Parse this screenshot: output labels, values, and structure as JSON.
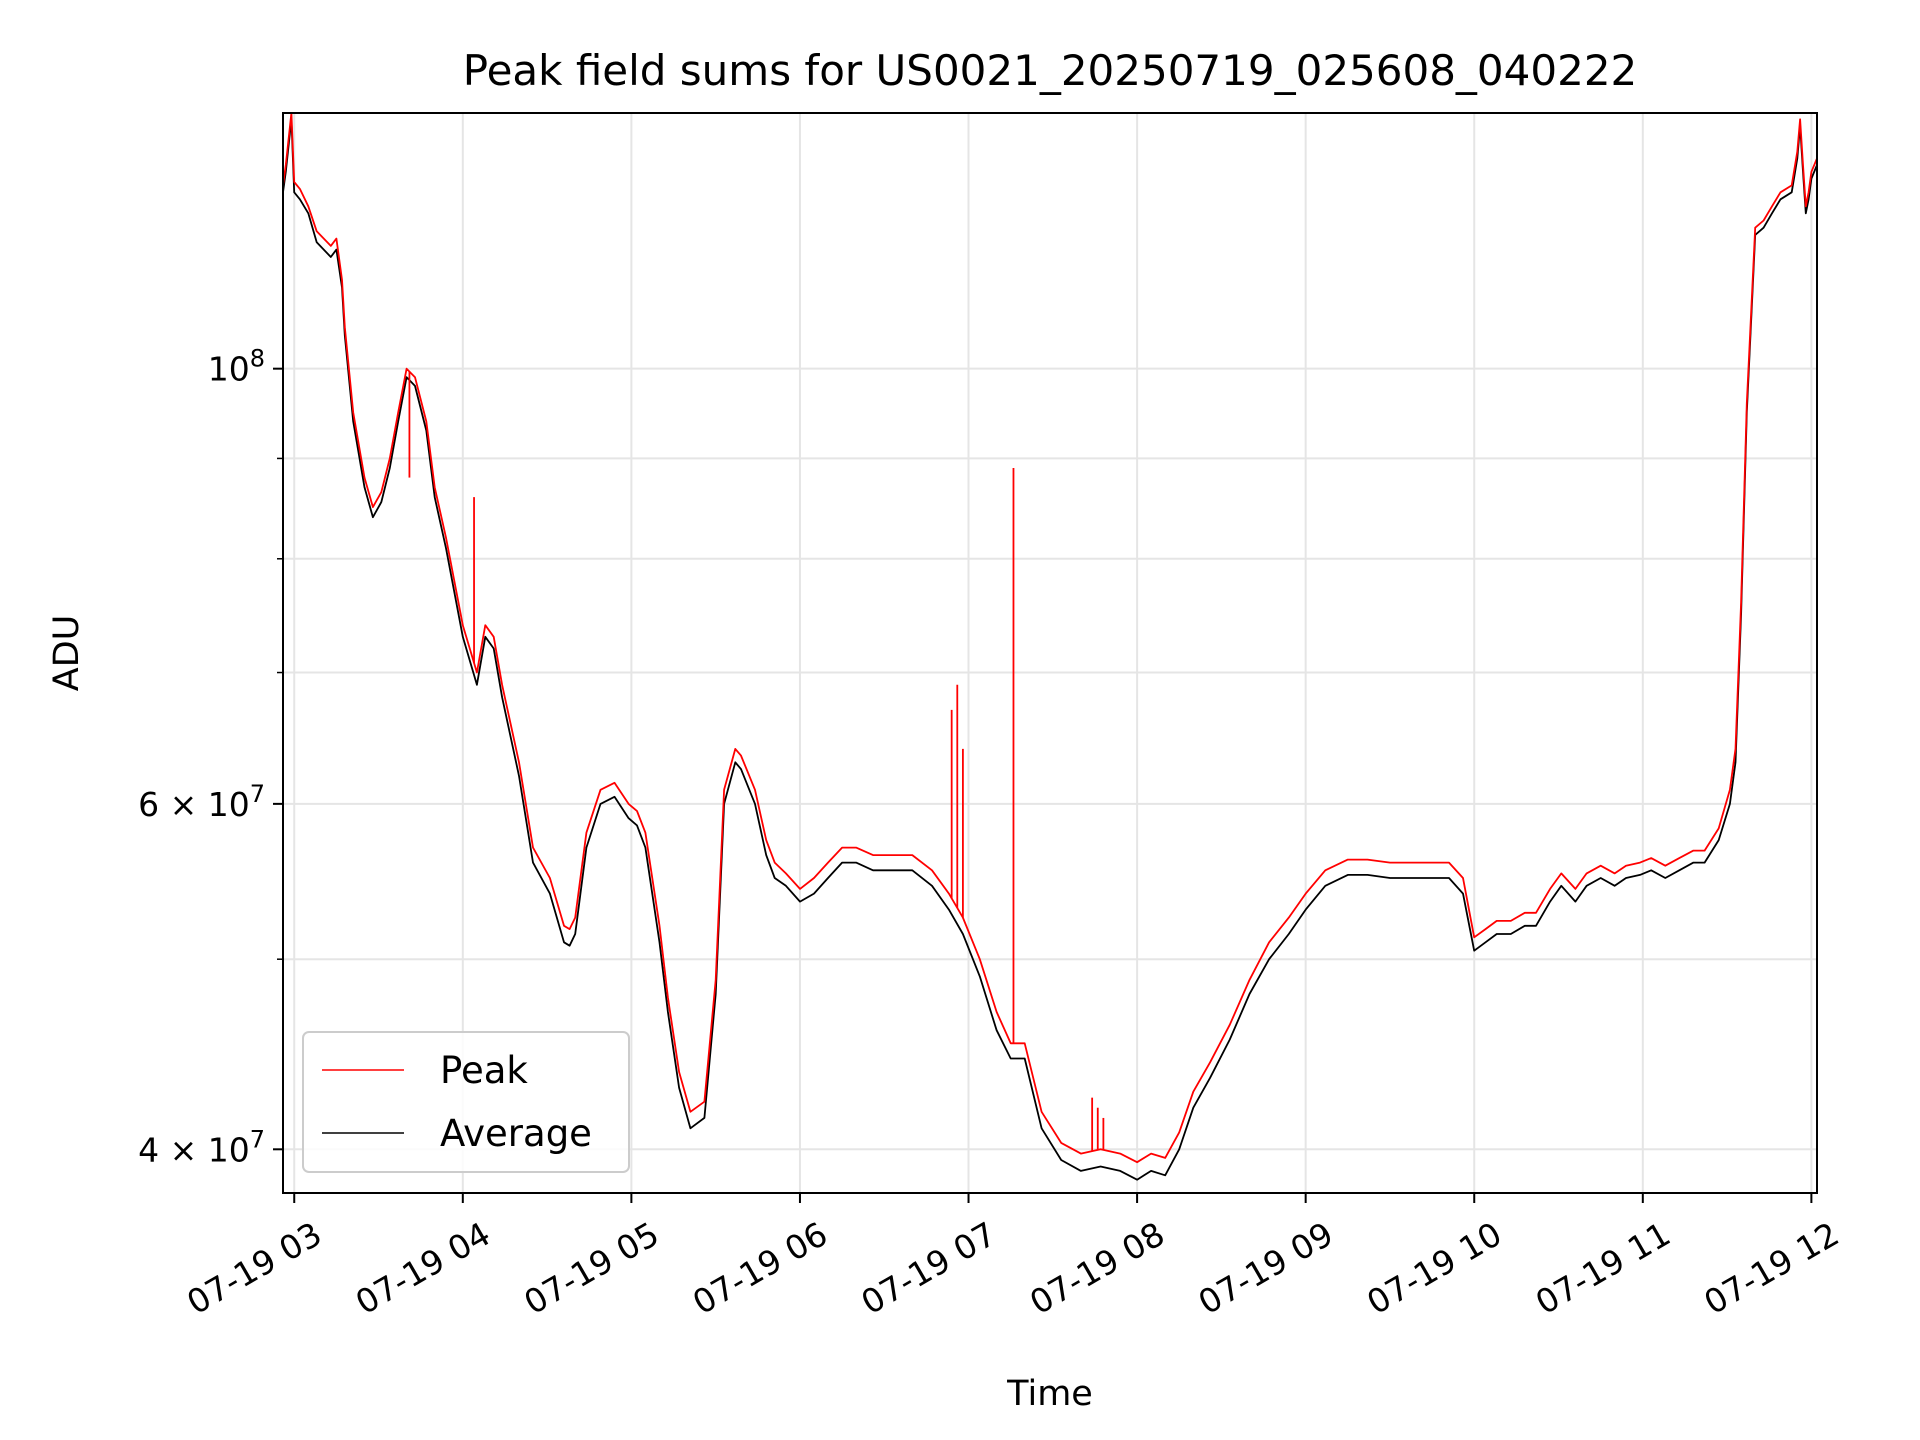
{
  "chart_data": {
    "type": "line",
    "title": "Peak field sums for US0021_20250719_025608_040222",
    "xlabel": "Time",
    "ylabel": "ADU",
    "y_scale": "log",
    "ylim": [
      38000000,
      135000000
    ],
    "xlim": [
      "2025-07-19 02:56",
      "2025-07-19 12:02"
    ],
    "grid": true,
    "legend_position": "lower-left",
    "x_ticks": [
      {
        "label": "07-19 03",
        "value": "2025-07-19 03:00"
      },
      {
        "label": "07-19 04",
        "value": "2025-07-19 04:00"
      },
      {
        "label": "07-19 05",
        "value": "2025-07-19 05:00"
      },
      {
        "label": "07-19 06",
        "value": "2025-07-19 06:00"
      },
      {
        "label": "07-19 07",
        "value": "2025-07-19 07:00"
      },
      {
        "label": "07-19 08",
        "value": "2025-07-19 08:00"
      },
      {
        "label": "07-19 09",
        "value": "2025-07-19 09:00"
      },
      {
        "label": "07-19 10",
        "value": "2025-07-19 10:00"
      },
      {
        "label": "07-19 11",
        "value": "2025-07-19 11:00"
      },
      {
        "label": "07-19 12",
        "value": "2025-07-19 12:00"
      }
    ],
    "y_major_ticks": [
      {
        "label_base": "10",
        "label_exp": "8",
        "value": 100000000
      },
      {
        "label_base": "6 × 10",
        "label_exp": "7",
        "value": 60000000
      },
      {
        "label_base": "4 × 10",
        "label_exp": "7",
        "value": 40000000
      }
    ],
    "y_minor_ticks": [
      50000000,
      70000000,
      80000000,
      90000000
    ],
    "x": [
      "2025-07-19 02:56",
      "2025-07-19 02:57",
      "2025-07-19 02:59",
      "2025-07-19 03:00",
      "2025-07-19 03:02",
      "2025-07-19 03:05",
      "2025-07-19 03:08",
      "2025-07-19 03:13",
      "2025-07-19 03:15",
      "2025-07-19 03:17",
      "2025-07-19 03:18",
      "2025-07-19 03:21",
      "2025-07-19 03:25",
      "2025-07-19 03:28",
      "2025-07-19 03:31",
      "2025-07-19 03:34",
      "2025-07-19 03:37",
      "2025-07-19 03:40",
      "2025-07-19 03:43",
      "2025-07-19 03:47",
      "2025-07-19 03:50",
      "2025-07-19 03:54",
      "2025-07-19 04:00",
      "2025-07-19 04:05",
      "2025-07-19 04:08",
      "2025-07-19 04:11",
      "2025-07-19 04:14",
      "2025-07-19 04:20",
      "2025-07-19 04:25",
      "2025-07-19 04:31",
      "2025-07-19 04:36",
      "2025-07-19 04:38",
      "2025-07-19 04:40",
      "2025-07-19 04:44",
      "2025-07-19 04:49",
      "2025-07-19 04:54",
      "2025-07-19 04:59",
      "2025-07-19 05:02",
      "2025-07-19 05:05",
      "2025-07-19 05:10",
      "2025-07-19 05:13",
      "2025-07-19 05:17",
      "2025-07-19 05:21",
      "2025-07-19 05:26",
      "2025-07-19 05:30",
      "2025-07-19 05:33",
      "2025-07-19 05:37",
      "2025-07-19 05:39",
      "2025-07-19 05:44",
      "2025-07-19 05:48",
      "2025-07-19 05:51",
      "2025-07-19 05:55",
      "2025-07-19 06:00",
      "2025-07-19 06:05",
      "2025-07-19 06:10",
      "2025-07-19 06:15",
      "2025-07-19 06:20",
      "2025-07-19 06:26",
      "2025-07-19 06:33",
      "2025-07-19 06:40",
      "2025-07-19 06:47",
      "2025-07-19 06:53",
      "2025-07-19 06:58",
      "2025-07-19 07:04",
      "2025-07-19 07:10",
      "2025-07-19 07:15",
      "2025-07-19 07:20",
      "2025-07-19 07:26",
      "2025-07-19 07:33",
      "2025-07-19 07:40",
      "2025-07-19 07:47",
      "2025-07-19 07:54",
      "2025-07-19 08:00",
      "2025-07-19 08:05",
      "2025-07-19 08:10",
      "2025-07-19 08:15",
      "2025-07-19 08:20",
      "2025-07-19 08:26",
      "2025-07-19 08:33",
      "2025-07-19 08:40",
      "2025-07-19 08:47",
      "2025-07-19 08:54",
      "2025-07-19 09:00",
      "2025-07-19 09:07",
      "2025-07-19 09:15",
      "2025-07-19 09:22",
      "2025-07-19 09:30",
      "2025-07-19 09:38",
      "2025-07-19 09:45",
      "2025-07-19 09:51",
      "2025-07-19 09:56",
      "2025-07-19 10:00",
      "2025-07-19 10:04",
      "2025-07-19 10:08",
      "2025-07-19 10:13",
      "2025-07-19 10:18",
      "2025-07-19 10:22",
      "2025-07-19 10:27",
      "2025-07-19 10:31",
      "2025-07-19 10:36",
      "2025-07-19 10:40",
      "2025-07-19 10:45",
      "2025-07-19 10:50",
      "2025-07-19 10:54",
      "2025-07-19 10:59",
      "2025-07-19 11:03",
      "2025-07-19 11:08",
      "2025-07-19 11:13",
      "2025-07-19 11:18",
      "2025-07-19 11:22",
      "2025-07-19 11:27",
      "2025-07-19 11:31",
      "2025-07-19 11:33",
      "2025-07-19 11:35",
      "2025-07-19 11:37",
      "2025-07-19 11:40",
      "2025-07-19 11:43",
      "2025-07-19 11:46",
      "2025-07-19 11:49",
      "2025-07-19 11:53",
      "2025-07-19 11:55",
      "2025-07-19 11:56",
      "2025-07-19 11:57",
      "2025-07-19 11:58",
      "2025-07-19 11:59",
      "2025-07-19 12:00",
      "2025-07-19 12:02"
    ],
    "series": [
      {
        "name": "Average",
        "color": "#000000",
        "values": [
          123000000,
          126000000,
          134000000,
          123000000,
          122000000,
          120000000,
          116000000,
          114000000,
          115000000,
          110000000,
          104000000,
          94000000,
          87000000,
          84000000,
          85500000,
          89000000,
          94000000,
          99000000,
          98000000,
          93000000,
          86000000,
          81000000,
          73000000,
          69000000,
          73000000,
          72000000,
          68000000,
          62000000,
          56000000,
          54000000,
          51000000,
          50800000,
          51500000,
          57000000,
          60000000,
          60500000,
          59000000,
          58500000,
          57000000,
          51000000,
          47000000,
          43000000,
          41000000,
          41500000,
          48000000,
          60000000,
          63000000,
          62500000,
          60000000,
          56500000,
          55000000,
          54500000,
          53500000,
          54000000,
          55000000,
          56000000,
          56000000,
          55500000,
          55500000,
          55500000,
          54500000,
          53000000,
          51500000,
          49000000,
          46000000,
          44500000,
          44500000,
          41000000,
          39500000,
          39000000,
          39200000,
          39000000,
          38600000,
          39000000,
          38800000,
          40000000,
          42000000,
          43500000,
          45500000,
          48000000,
          50000000,
          51500000,
          53000000,
          54500000,
          55200000,
          55200000,
          55000000,
          55000000,
          55000000,
          55000000,
          54000000,
          50500000,
          51000000,
          51500000,
          51500000,
          52000000,
          52000000,
          53500000,
          54500000,
          53500000,
          54500000,
          55000000,
          54500000,
          55000000,
          55200000,
          55500000,
          55000000,
          55500000,
          56000000,
          56000000,
          57500000,
          60000000,
          63000000,
          75000000,
          95000000,
          117000000,
          118000000,
          120000000,
          122000000,
          123000000,
          128000000,
          133000000,
          126000000,
          120000000,
          122000000,
          125000000,
          127000000
        ]
      },
      {
        "name": "Peak",
        "color": "#ff0000",
        "values": [
          124000000,
          127000000,
          135000000,
          124500000,
          123500000,
          121000000,
          117500000,
          115500000,
          116500000,
          111000000,
          105000000,
          95000000,
          88000000,
          85000000,
          86500000,
          90000000,
          95000000,
          100000000,
          99000000,
          94000000,
          87000000,
          82000000,
          74000000,
          70000000,
          74000000,
          73000000,
          69000000,
          63000000,
          57000000,
          55000000,
          52000000,
          51800000,
          52500000,
          58000000,
          61000000,
          61500000,
          60000000,
          59500000,
          58000000,
          52000000,
          47800000,
          43800000,
          41800000,
          42300000,
          48800000,
          61000000,
          64000000,
          63500000,
          61000000,
          57500000,
          56000000,
          55300000,
          54300000,
          55000000,
          56000000,
          57000000,
          57000000,
          56500000,
          56500000,
          56500000,
          55500000,
          54000000,
          52500000,
          50000000,
          47000000,
          45300000,
          45300000,
          41800000,
          40300000,
          39800000,
          40000000,
          39800000,
          39400000,
          39800000,
          39600000,
          40800000,
          42800000,
          44300000,
          46300000,
          48800000,
          51000000,
          52500000,
          54000000,
          55500000,
          56200000,
          56200000,
          56000000,
          56000000,
          56000000,
          56000000,
          55000000,
          51300000,
          51800000,
          52300000,
          52300000,
          52800000,
          52800000,
          54300000,
          55300000,
          54300000,
          55300000,
          55800000,
          55300000,
          55800000,
          56000000,
          56300000,
          55800000,
          56300000,
          56800000,
          56800000,
          58300000,
          61000000,
          64000000,
          76000000,
          96000000,
          118000000,
          119000000,
          121000000,
          123000000,
          124000000,
          129000000,
          134000000,
          127000000,
          121000000,
          123000000,
          126000000,
          128000000
        ]
      }
    ],
    "peak_spikes": [
      {
        "x": "2025-07-19 03:41",
        "y": 88000000
      },
      {
        "x": "2025-07-19 04:04",
        "y": 86000000
      },
      {
        "x": "2025-07-19 06:54",
        "y": 67000000
      },
      {
        "x": "2025-07-19 06:56",
        "y": 69000000
      },
      {
        "x": "2025-07-19 06:58",
        "y": 64000000
      },
      {
        "x": "2025-07-19 07:16",
        "y": 89000000
      },
      {
        "x": "2025-07-19 07:44",
        "y": 42500000
      },
      {
        "x": "2025-07-19 07:46",
        "y": 42000000
      },
      {
        "x": "2025-07-19 07:48",
        "y": 41500000
      }
    ]
  },
  "colors": {
    "peak": "#ff0000",
    "average": "#000000",
    "grid": "#e5e5e5",
    "frame": "#000000"
  }
}
